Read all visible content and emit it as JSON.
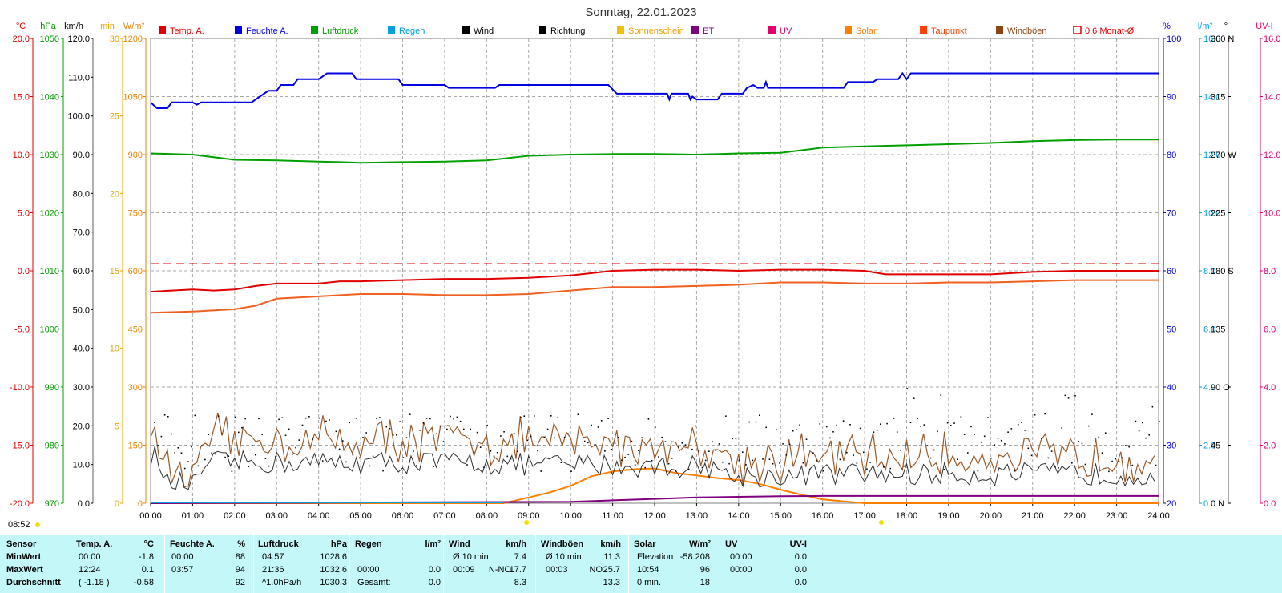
{
  "title": "Sonntag, 22.01.2023",
  "legend": [
    {
      "label": "Temp. A.",
      "color": "#e00000",
      "type": "box"
    },
    {
      "label": "Feuchte A.",
      "color": "#0000e0",
      "type": "box"
    },
    {
      "label": "Luftdruck",
      "color": "#00a000",
      "type": "box"
    },
    {
      "label": "Regen",
      "color": "#00a0e0",
      "type": "box"
    },
    {
      "label": "Wind",
      "color": "#000000",
      "type": "box"
    },
    {
      "label": "Richtung",
      "color": "#000000",
      "type": "box"
    },
    {
      "label": "Sonnenschein",
      "color": "#f0c000",
      "type": "box",
      "text_color": "#f0a000"
    },
    {
      "label": "ET",
      "color": "#800080",
      "type": "box"
    },
    {
      "label": "UV",
      "color": "#e00070",
      "type": "box"
    },
    {
      "label": "Solar",
      "color": "#ff8000",
      "type": "box"
    },
    {
      "label": "Taupunkt",
      "color": "#ff4000",
      "type": "box"
    },
    {
      "label": "Windböen",
      "color": "#8b4513",
      "type": "box"
    },
    {
      "label": "0.6 Monat-Ø",
      "color": "#e00000",
      "type": "outline"
    }
  ],
  "axes_left": [
    {
      "unit": "°C",
      "color": "#e00000",
      "ticks": [
        "20.0",
        "15.0",
        "10.0",
        "5.0",
        "0.0",
        "-5.0",
        "-10.0",
        "-15.0",
        "-20.0"
      ]
    },
    {
      "unit": "hPa",
      "color": "#00a000",
      "ticks": [
        "1050",
        "1040",
        "1030",
        "1020",
        "1010",
        "1000",
        "990",
        "980",
        "970"
      ]
    },
    {
      "unit": "km/h",
      "color": "#000000",
      "ticks": [
        "120.0",
        "110.0",
        "100.0",
        "90.0",
        "80.0",
        "70.0",
        "60.0",
        "50.0",
        "40.0",
        "30.0",
        "20.0",
        "10.0",
        "0.0"
      ]
    },
    {
      "unit": "min",
      "color": "#f0a000",
      "ticks": [
        "30",
        "25",
        "20",
        "15",
        "10",
        "5",
        "0"
      ]
    },
    {
      "unit": "W/m²",
      "color": "#f08000",
      "ticks": [
        "1200",
        "1050",
        "900",
        "750",
        "600",
        "450",
        "300",
        "150",
        "0"
      ]
    }
  ],
  "axes_right": [
    {
      "unit": "%",
      "color": "#0000e0",
      "ticks": [
        "100",
        "90",
        "80",
        "70",
        "60",
        "50",
        "40",
        "30",
        "20"
      ]
    },
    {
      "unit": "l/m²",
      "color": "#00a0e0",
      "ticks": [
        "16.0",
        "14.0",
        "12.0",
        "10.0",
        "8.0",
        "6.0",
        "4.0",
        "2.0",
        "0.0"
      ]
    },
    {
      "unit": "°",
      "color": "#000000",
      "ticks": [
        "360 N",
        "315",
        "270 W",
        "225",
        "180 S",
        "135",
        "90 O",
        "45",
        "0 N"
      ]
    },
    {
      "unit": "UV-I",
      "color": "#e00070",
      "ticks": [
        "16.0",
        "14.0",
        "12.0",
        "10.0",
        "8.0",
        "6.0",
        "4.0",
        "2.0",
        "0.0"
      ]
    }
  ],
  "x_ticks": [
    "00:00",
    "01:00",
    "02:00",
    "03:00",
    "04:00",
    "05:00",
    "06:00",
    "07:00",
    "08:00",
    "09:00",
    "10:00",
    "11:00",
    "12:00",
    "13:00",
    "14:00",
    "15:00",
    "16:00",
    "17:00",
    "18:00",
    "19:00",
    "20:00",
    "21:00",
    "22:00",
    "23:00",
    "24:00"
  ],
  "sunrise_label": "08:52",
  "chart_data": {
    "type": "line",
    "title": "Sonntag, 22.01.2023",
    "x_range_hours": [
      0,
      24
    ],
    "grid": true,
    "series": [
      {
        "name": "Feuchte A.",
        "unit": "%",
        "color": "#0000e0",
        "ylim": [
          20,
          100
        ],
        "points": [
          [
            0,
            89
          ],
          [
            0.15,
            88
          ],
          [
            0.4,
            88
          ],
          [
            0.5,
            89
          ],
          [
            1.0,
            89
          ],
          [
            1.1,
            88.6
          ],
          [
            1.2,
            89
          ],
          [
            2.4,
            89
          ],
          [
            2.6,
            90
          ],
          [
            2.8,
            91
          ],
          [
            3.0,
            91
          ],
          [
            3.1,
            92
          ],
          [
            3.4,
            92
          ],
          [
            3.5,
            93
          ],
          [
            4.0,
            93
          ],
          [
            4.2,
            94
          ],
          [
            4.8,
            94
          ],
          [
            4.9,
            93
          ],
          [
            5.9,
            93
          ],
          [
            6.0,
            92
          ],
          [
            7.0,
            92
          ],
          [
            7.1,
            91.5
          ],
          [
            8.2,
            91.5
          ],
          [
            8.3,
            92
          ],
          [
            10.5,
            92
          ],
          [
            10.9,
            92
          ],
          [
            11.1,
            90.5
          ],
          [
            12.3,
            90.5
          ],
          [
            12.35,
            89.5
          ],
          [
            12.4,
            90.5
          ],
          [
            12.8,
            90.5
          ],
          [
            12.85,
            89.5
          ],
          [
            12.9,
            90
          ],
          [
            13.0,
            89.5
          ],
          [
            13.5,
            89.5
          ],
          [
            13.6,
            90.5
          ],
          [
            14.1,
            90.5
          ],
          [
            14.2,
            91.5
          ],
          [
            14.35,
            92
          ],
          [
            14.45,
            91.5
          ],
          [
            14.6,
            91.5
          ],
          [
            14.65,
            92.5
          ],
          [
            14.7,
            91.5
          ],
          [
            15.4,
            91.5
          ],
          [
            15.5,
            91.5
          ],
          [
            16.5,
            91.5
          ],
          [
            16.6,
            92.5
          ],
          [
            17.2,
            92.5
          ],
          [
            17.3,
            93
          ],
          [
            17.8,
            93
          ],
          [
            17.9,
            94
          ],
          [
            18.0,
            93
          ],
          [
            18.1,
            94
          ],
          [
            24,
            94
          ]
        ]
      },
      {
        "name": "Luftdruck",
        "unit": "hPa",
        "color": "#00a000",
        "ylim": [
          970,
          1050
        ],
        "points": [
          [
            0,
            1030.2
          ],
          [
            1,
            1030.0
          ],
          [
            2,
            1029.1
          ],
          [
            3,
            1029.0
          ],
          [
            3.5,
            1028.9
          ],
          [
            4,
            1028.8
          ],
          [
            4.5,
            1028.7
          ],
          [
            5,
            1028.6
          ],
          [
            6,
            1028.7
          ],
          [
            7,
            1028.8
          ],
          [
            8,
            1029.0
          ],
          [
            9,
            1029.8
          ],
          [
            10,
            1030.0
          ],
          [
            11,
            1030.1
          ],
          [
            12,
            1030.1
          ],
          [
            13,
            1030.0
          ],
          [
            14,
            1030.2
          ],
          [
            15,
            1030.3
          ],
          [
            16,
            1031.2
          ],
          [
            17,
            1031.4
          ],
          [
            18,
            1031.6
          ],
          [
            19,
            1031.8
          ],
          [
            20,
            1032.0
          ],
          [
            21,
            1032.3
          ],
          [
            22,
            1032.5
          ],
          [
            23,
            1032.6
          ],
          [
            24,
            1032.6
          ]
        ]
      },
      {
        "name": "Temp. A.",
        "unit": "°C",
        "color": "#e00000",
        "ylim": [
          -20,
          20
        ],
        "points": [
          [
            0,
            -1.8
          ],
          [
            0.5,
            -1.7
          ],
          [
            1,
            -1.6
          ],
          [
            1.5,
            -1.7
          ],
          [
            2,
            -1.6
          ],
          [
            2.5,
            -1.3
          ],
          [
            3,
            -1.1
          ],
          [
            4,
            -1.1
          ],
          [
            4.5,
            -0.9
          ],
          [
            5,
            -0.9
          ],
          [
            6,
            -0.8
          ],
          [
            7,
            -0.7
          ],
          [
            8,
            -0.7
          ],
          [
            9,
            -0.6
          ],
          [
            10,
            -0.4
          ],
          [
            10.5,
            -0.2
          ],
          [
            11,
            0.0
          ],
          [
            12,
            0.1
          ],
          [
            13,
            0.1
          ],
          [
            14,
            0.0
          ],
          [
            15,
            0.1
          ],
          [
            16,
            0.1
          ],
          [
            17,
            0.0
          ],
          [
            17.5,
            -0.3
          ],
          [
            18,
            -0.3
          ],
          [
            19,
            -0.3
          ],
          [
            20,
            -0.3
          ],
          [
            21,
            -0.1
          ],
          [
            22,
            0.0
          ],
          [
            23,
            0.0
          ],
          [
            24,
            0.0
          ]
        ]
      },
      {
        "name": "Taupunkt",
        "unit": "°C",
        "color": "#f06020",
        "ylim": [
          -20,
          20
        ],
        "points": [
          [
            0,
            -3.6
          ],
          [
            1,
            -3.5
          ],
          [
            2,
            -3.3
          ],
          [
            2.5,
            -3.0
          ],
          [
            3,
            -2.4
          ],
          [
            4,
            -2.2
          ],
          [
            5,
            -2.0
          ],
          [
            6,
            -2.0
          ],
          [
            7,
            -2.1
          ],
          [
            8,
            -2.1
          ],
          [
            9,
            -2.0
          ],
          [
            10,
            -1.7
          ],
          [
            11,
            -1.4
          ],
          [
            12,
            -1.4
          ],
          [
            13,
            -1.3
          ],
          [
            14,
            -1.2
          ],
          [
            15,
            -1.0
          ],
          [
            16,
            -1.0
          ],
          [
            17,
            -1.1
          ],
          [
            18,
            -1.1
          ],
          [
            19,
            -1.0
          ],
          [
            20,
            -1.0
          ],
          [
            21,
            -0.9
          ],
          [
            22,
            -0.8
          ],
          [
            23,
            -0.8
          ],
          [
            24,
            -0.8
          ]
        ]
      },
      {
        "name": "Solar",
        "unit": "W/m²",
        "color": "#ff8000",
        "ylim": [
          0,
          1200
        ],
        "points": [
          [
            0,
            0
          ],
          [
            8.4,
            0
          ],
          [
            9,
            15
          ],
          [
            9.5,
            28
          ],
          [
            10,
            45
          ],
          [
            10.5,
            70
          ],
          [
            11,
            82
          ],
          [
            11.5,
            88
          ],
          [
            12,
            90
          ],
          [
            12.5,
            78
          ],
          [
            13,
            72
          ],
          [
            13.5,
            65
          ],
          [
            14,
            60
          ],
          [
            14.5,
            50
          ],
          [
            15,
            35
          ],
          [
            15.5,
            22
          ],
          [
            16,
            10
          ],
          [
            16.5,
            5
          ],
          [
            17,
            0
          ],
          [
            24,
            0
          ]
        ]
      },
      {
        "name": "ET",
        "unit": "",
        "color": "#800080",
        "ylim": [
          0,
          16
        ],
        "points": [
          [
            0,
            0
          ],
          [
            10,
            0.05
          ],
          [
            11,
            0.1
          ],
          [
            12,
            0.15
          ],
          [
            13,
            0.2
          ],
          [
            14,
            0.22
          ],
          [
            15,
            0.24
          ],
          [
            16,
            0.25
          ],
          [
            17,
            0.25
          ],
          [
            24,
            0.25
          ]
        ]
      }
    ],
    "wind_kmh_ylim": [
      0,
      120
    ],
    "monat_avg_temp": 0.6
  },
  "stats": {
    "headers": [
      {
        "label": "Sensor",
        "unit": ""
      },
      {
        "label": "Temp. A.",
        "unit": "°C"
      },
      {
        "label": "Feuchte A.",
        "unit": "%"
      },
      {
        "label": "Luftdruck",
        "unit": "hPa"
      },
      {
        "label": "Regen",
        "unit": "l/m²"
      },
      {
        "label": "Wind",
        "unit": "km/h"
      },
      {
        "label": "Windböen",
        "unit": "km/h"
      },
      {
        "label": "Solar",
        "unit": "W/m²"
      },
      {
        "label": "UV",
        "unit": "UV-I"
      }
    ],
    "rows": [
      {
        "label": "MinWert",
        "temp": [
          "00:00",
          "-1.8"
        ],
        "feuchte": [
          "00:00",
          "88"
        ],
        "luft": [
          "04:57",
          "1028.6"
        ],
        "regen": [
          "",
          ""
        ],
        "wind": [
          "Ø 10 min.",
          "",
          "7.4"
        ],
        "boen": [
          "Ø 10 min.",
          "",
          "11.3"
        ],
        "solar": [
          "Elevation",
          "-58.208"
        ],
        "uv": [
          "00:00",
          "0.0"
        ]
      },
      {
        "label": "MaxWert",
        "temp": [
          "12:24",
          "0.1"
        ],
        "feuchte": [
          "03:57",
          "94"
        ],
        "luft": [
          "21:36",
          "1032.6"
        ],
        "regen": [
          "00:00",
          "0.0"
        ],
        "wind": [
          "00:09",
          "N-NO",
          "17.7"
        ],
        "boen": [
          "00:03",
          "NO",
          "25.7"
        ],
        "solar": [
          "10:54",
          "96"
        ],
        "uv": [
          "00:00",
          "0.0"
        ]
      },
      {
        "label": "Durchschnitt",
        "temp": [
          "( -1.18 )",
          "-0.58"
        ],
        "feuchte": [
          "",
          "92"
        ],
        "luft": [
          "^1.0hPa/h",
          "1030.3"
        ],
        "regen": [
          "Gesamt:",
          "0.0"
        ],
        "wind": [
          "",
          "",
          "8.3"
        ],
        "boen": [
          "",
          "",
          "13.3"
        ],
        "solar": [
          "0 min.",
          "18"
        ],
        "uv": [
          "",
          "0.0"
        ]
      }
    ]
  }
}
